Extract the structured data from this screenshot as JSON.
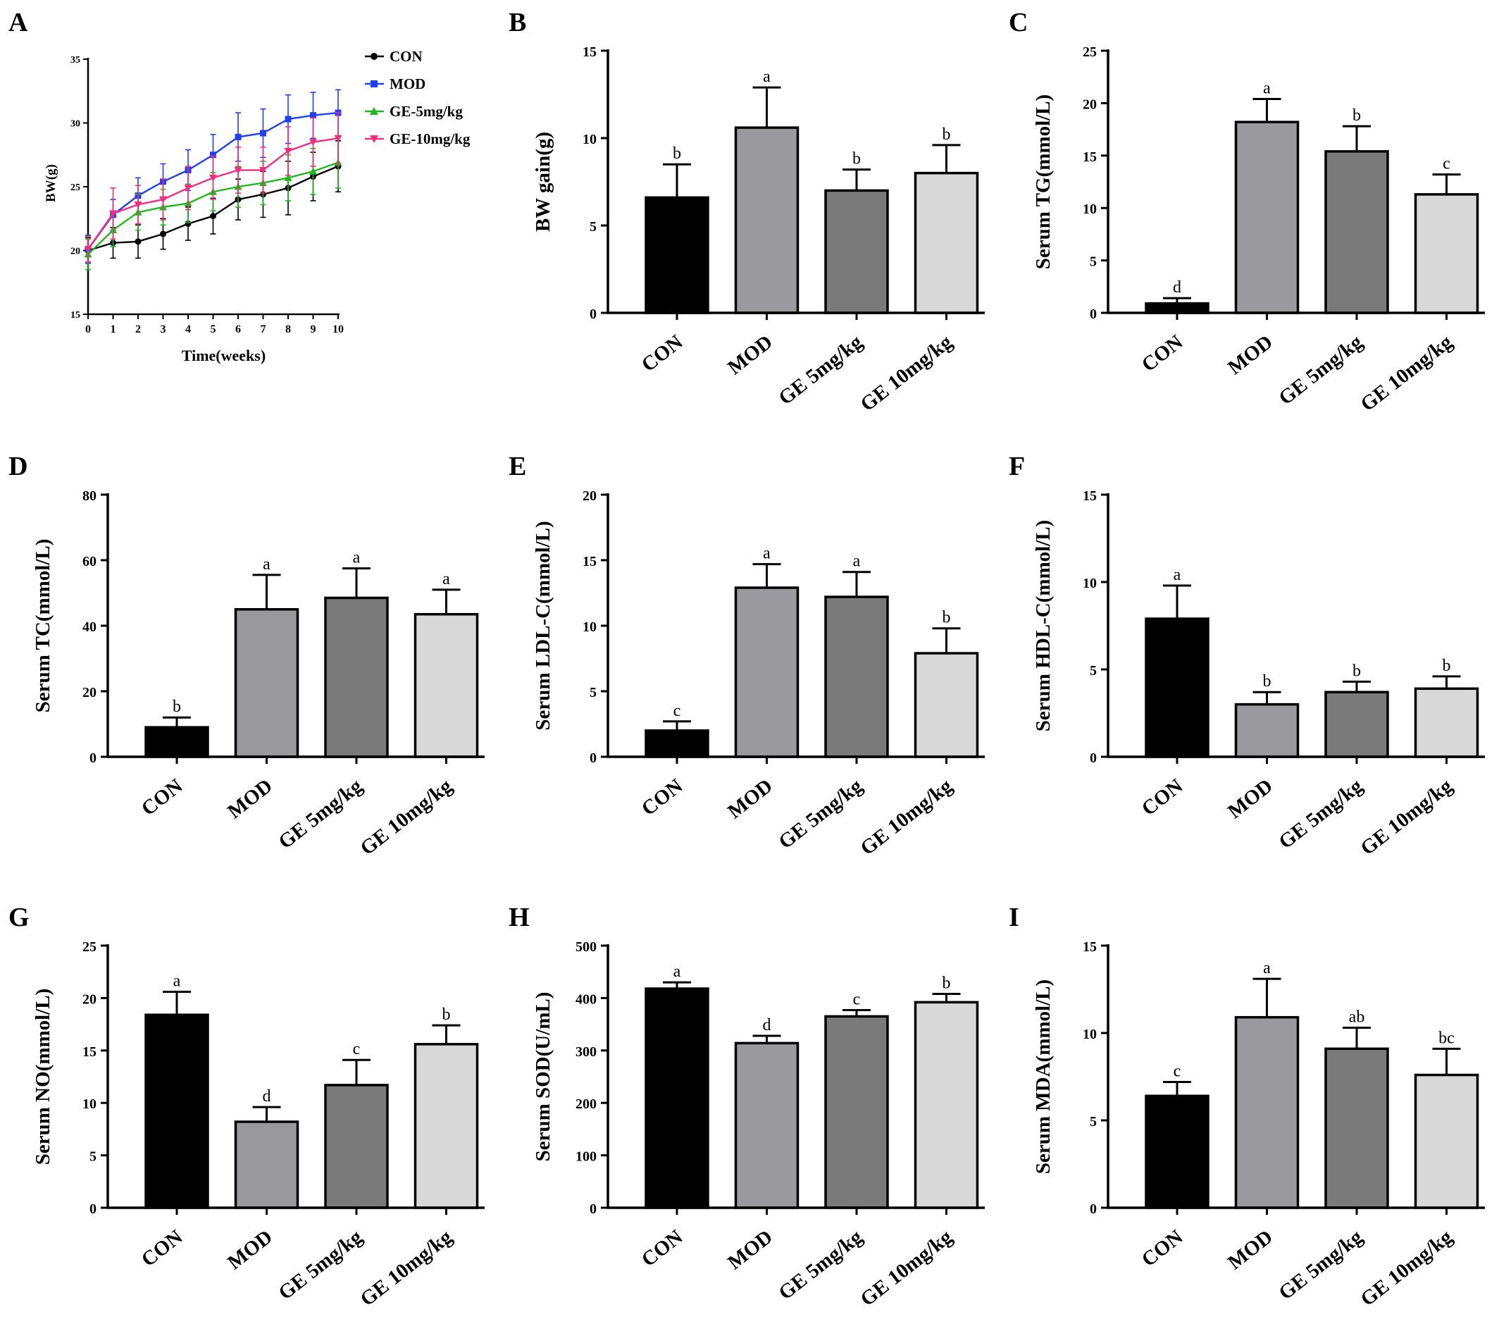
{
  "chart_data": [
    {
      "panel": "A",
      "type": "line",
      "xlabel": "Time(weeks)",
      "ylabel": "BW(g)",
      "ylim": [
        15,
        35
      ],
      "yticks": [
        15,
        20,
        25,
        30,
        35
      ],
      "xticks": [
        0,
        1,
        2,
        3,
        4,
        5,
        6,
        7,
        8,
        9,
        10
      ],
      "x": [
        0,
        1,
        2,
        3,
        4,
        5,
        6,
        7,
        8,
        9,
        10
      ],
      "legend_position": "top-right",
      "series": [
        {
          "name": "CON",
          "color": "#000000",
          "marker": "circle",
          "values": [
            20.0,
            20.6,
            20.7,
            21.3,
            22.1,
            22.7,
            24.0,
            24.4,
            24.9,
            25.8,
            26.6
          ],
          "errors": [
            1.0,
            1.2,
            1.3,
            1.2,
            1.3,
            1.4,
            1.6,
            1.8,
            2.1,
            1.9,
            2.0
          ]
        },
        {
          "name": "MOD",
          "color": "#1f3ff0",
          "marker": "square",
          "values": [
            20.1,
            22.8,
            24.3,
            25.4,
            26.3,
            27.5,
            28.9,
            29.2,
            30.3,
            30.6,
            30.8
          ],
          "errors": [
            1.1,
            1.2,
            1.4,
            1.4,
            1.6,
            1.6,
            1.9,
            1.9,
            1.9,
            1.8,
            1.8
          ]
        },
        {
          "name": "GE-5mg/kg",
          "color": "#1fb81f",
          "marker": "triangle",
          "values": [
            19.7,
            21.6,
            23.0,
            23.4,
            23.7,
            24.6,
            25.0,
            25.3,
            25.7,
            26.2,
            26.9
          ],
          "errors": [
            1.2,
            1.3,
            1.4,
            1.4,
            1.5,
            1.5,
            1.6,
            1.7,
            1.8,
            1.8,
            2.0
          ]
        },
        {
          "name": "GE-10mg/kg",
          "color": "#ef2f7f",
          "marker": "triangle-down",
          "values": [
            20.1,
            22.9,
            23.6,
            24.0,
            24.9,
            25.7,
            26.3,
            26.3,
            27.8,
            28.5,
            28.8
          ],
          "errors": [
            1.0,
            2.0,
            1.5,
            1.6,
            1.7,
            1.7,
            1.8,
            1.8,
            1.9,
            1.9,
            2.0
          ]
        }
      ]
    },
    {
      "panel": "B",
      "type": "bar",
      "ylabel": "BW gain(g)",
      "ylim": [
        0,
        15
      ],
      "yticks": [
        0,
        5,
        10,
        15
      ],
      "categories": [
        "CON",
        "MOD",
        "GE 5mg/kg",
        "GE 10mg/kg"
      ],
      "values": [
        6.6,
        10.6,
        7.0,
        8.0
      ],
      "errors": [
        1.9,
        2.3,
        1.2,
        1.6
      ],
      "significance": [
        "b",
        "a",
        "b",
        "b"
      ]
    },
    {
      "panel": "C",
      "type": "bar",
      "ylabel": "Serum TG(mmol/L)",
      "ylim": [
        0,
        25
      ],
      "yticks": [
        0,
        5,
        10,
        15,
        20,
        25
      ],
      "categories": [
        "CON",
        "MOD",
        "GE 5mg/kg",
        "GE 10mg/kg"
      ],
      "values": [
        0.9,
        18.2,
        15.4,
        11.3
      ],
      "errors": [
        0.5,
        2.2,
        2.4,
        1.9
      ],
      "significance": [
        "d",
        "a",
        "b",
        "c"
      ]
    },
    {
      "panel": "D",
      "type": "bar",
      "ylabel": "Serum TC(mmol/L)",
      "ylim": [
        0,
        80
      ],
      "yticks": [
        0,
        20,
        40,
        60,
        80
      ],
      "categories": [
        "CON",
        "MOD",
        "GE 5mg/kg",
        "GE 10mg/kg"
      ],
      "values": [
        9,
        45,
        48.5,
        43.5
      ],
      "errors": [
        3,
        10.5,
        9,
        7.5
      ],
      "significance": [
        "b",
        "a",
        "a",
        "a"
      ]
    },
    {
      "panel": "E",
      "type": "bar",
      "ylabel": "Serum LDL-C(mmol/L)",
      "ylim": [
        0,
        20
      ],
      "yticks": [
        0,
        5,
        10,
        15,
        20
      ],
      "categories": [
        "CON",
        "MOD",
        "GE 5mg/kg",
        "GE 10mg/kg"
      ],
      "values": [
        2.0,
        12.9,
        12.2,
        7.9
      ],
      "errors": [
        0.7,
        1.8,
        1.9,
        1.9
      ],
      "significance": [
        "c",
        "a",
        "a",
        "b"
      ]
    },
    {
      "panel": "F",
      "type": "bar",
      "ylabel": "Serum HDL-C(mmol/L)",
      "ylim": [
        0,
        15
      ],
      "yticks": [
        0,
        5,
        10,
        15
      ],
      "categories": [
        "CON",
        "MOD",
        "GE 5mg/kg",
        "GE 10mg/kg"
      ],
      "values": [
        7.9,
        3.0,
        3.7,
        3.9
      ],
      "errors": [
        1.9,
        0.7,
        0.6,
        0.7
      ],
      "significance": [
        "a",
        "b",
        "b",
        "b"
      ]
    },
    {
      "panel": "G",
      "type": "bar",
      "ylabel": "Serum NO(mmol/L)",
      "ylim": [
        0,
        25
      ],
      "yticks": [
        0,
        5,
        10,
        15,
        20,
        25
      ],
      "categories": [
        "CON",
        "MOD",
        "GE 5mg/kg",
        "GE 10mg/kg"
      ],
      "values": [
        18.4,
        8.2,
        11.7,
        15.6
      ],
      "errors": [
        2.2,
        1.4,
        2.4,
        1.8
      ],
      "significance": [
        "a",
        "d",
        "c",
        "b"
      ]
    },
    {
      "panel": "H",
      "type": "bar",
      "ylabel": "Serum SOD(U/mL)",
      "ylim": [
        0,
        500
      ],
      "yticks": [
        0,
        100,
        200,
        300,
        400,
        500
      ],
      "categories": [
        "CON",
        "MOD",
        "GE 5mg/kg",
        "GE 10mg/kg"
      ],
      "values": [
        418,
        314,
        365,
        392
      ],
      "errors": [
        12,
        14,
        12,
        16
      ],
      "significance": [
        "a",
        "d",
        "c",
        "b"
      ]
    },
    {
      "panel": "I",
      "type": "bar",
      "ylabel": "Serum MDA(mmol/L)",
      "ylim": [
        0,
        15
      ],
      "yticks": [
        0,
        5,
        10,
        15
      ],
      "categories": [
        "CON",
        "MOD",
        "GE 5mg/kg",
        "GE 10mg/kg"
      ],
      "values": [
        6.4,
        10.9,
        9.1,
        7.6
      ],
      "errors": [
        0.8,
        2.2,
        1.2,
        1.5
      ],
      "significance": [
        "c",
        "a",
        "ab",
        "bc"
      ]
    }
  ],
  "bar_colors": [
    "#000000",
    "#9a999e",
    "#7a7a7a",
    "#d8d8d8"
  ]
}
